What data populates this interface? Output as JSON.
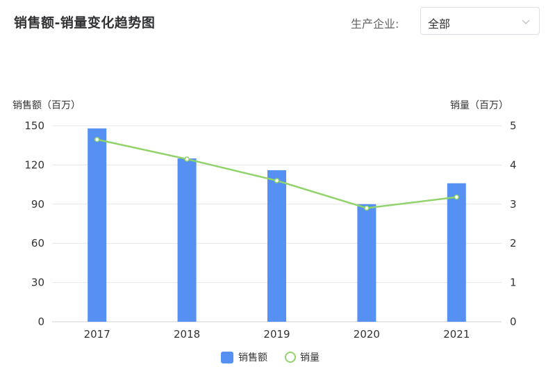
{
  "header": {
    "title": "销售额-销量变化趋势图",
    "filter_label": "生产企业:",
    "filter_value": "全部",
    "filter_icon": "chevron-down-icon"
  },
  "colors": {
    "bar": "#5590f2",
    "line": "#8fd36a",
    "grid": "#e6e6e6",
    "axis_text": "#333333"
  },
  "chart_data": {
    "type": "bar",
    "categories": [
      "2017",
      "2018",
      "2019",
      "2020",
      "2021"
    ],
    "series": [
      {
        "name": "销售额",
        "type": "bar",
        "axis": "left",
        "values": [
          148,
          125,
          116,
          90,
          106
        ]
      },
      {
        "name": "销量",
        "type": "line",
        "axis": "right",
        "values": [
          4.65,
          4.15,
          3.6,
          2.9,
          3.18
        ]
      }
    ],
    "y_left": {
      "label": "销售额（百万）",
      "ylim": [
        0,
        150
      ],
      "ticks": [
        0,
        30,
        60,
        90,
        120,
        150
      ]
    },
    "y_right": {
      "label": "销量（百万）",
      "ylim": [
        0,
        5
      ],
      "ticks": [
        0,
        1,
        2,
        3,
        4,
        5
      ]
    },
    "grid": true,
    "legend": {
      "position": "bottom-center",
      "items": [
        "销售额",
        "销量"
      ]
    }
  }
}
